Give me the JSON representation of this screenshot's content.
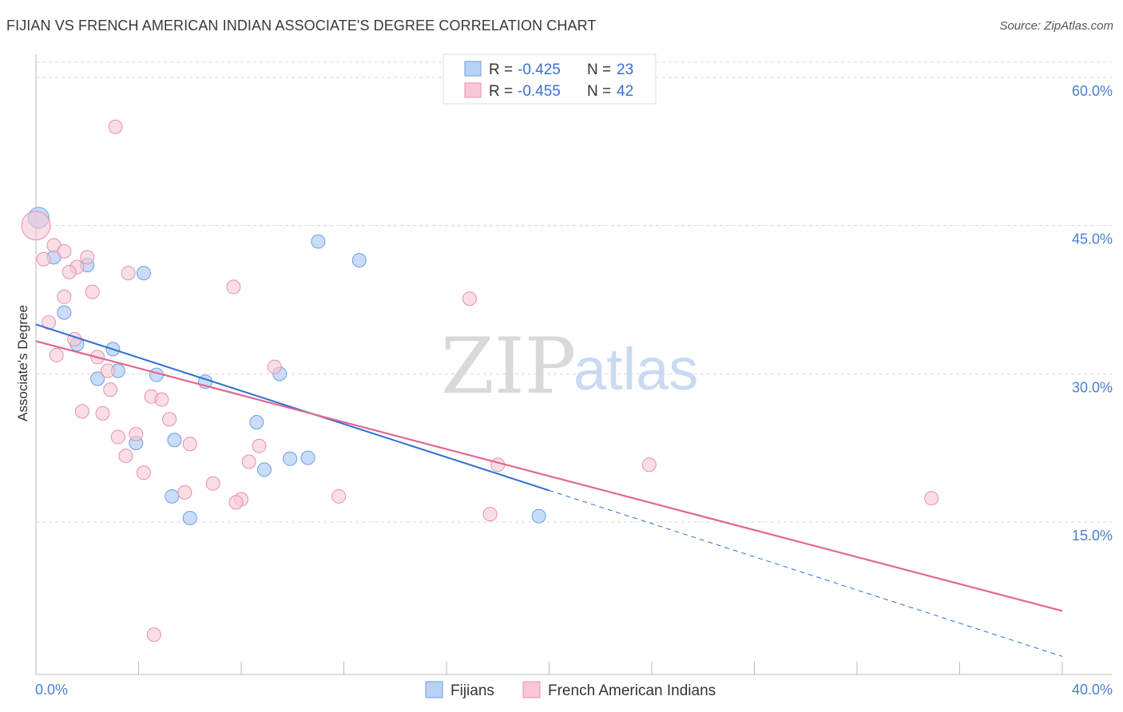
{
  "title": "FIJIAN VS FRENCH AMERICAN INDIAN ASSOCIATE'S DEGREE CORRELATION CHART",
  "source": "Source: ZipAtlas.com",
  "watermark": {
    "zip": "ZIP",
    "atlas": "atlas"
  },
  "legend_top": [
    {
      "r_label": "R = ",
      "r_value": "-0.425",
      "n_label": "N = ",
      "n_value": "23"
    },
    {
      "r_label": "R = ",
      "r_value": "-0.455",
      "n_label": "N = ",
      "n_value": "42"
    }
  ],
  "colors": {
    "fijian_fill": "#b8d2f5",
    "fijian_stroke": "#6f9de0",
    "fijian_line": "#2f6fd1",
    "french_fill": "#f7c8d6",
    "french_stroke": "#e88fab",
    "french_line": "#e2678f",
    "grid": "#d8d8d8",
    "axis": "#bbbbbb"
  },
  "chart_data": {
    "type": "scatter",
    "title": "FIJIAN VS FRENCH AMERICAN INDIAN ASSOCIATE'S DEGREE CORRELATION CHART",
    "xlabel": "",
    "ylabel": "Associate's Degree",
    "xlim": [
      0,
      40
    ],
    "ylim": [
      0,
      60
    ],
    "x_tick_labels": [
      "0.0%",
      "40.0%"
    ],
    "y_ticks": [
      15,
      30,
      45,
      60
    ],
    "y_tick_labels": [
      "15.0%",
      "30.0%",
      "45.0%",
      "60.0%"
    ],
    "grid": true,
    "legend_position": "top-center",
    "series": [
      {
        "name": "Fijians",
        "r": -0.425,
        "n": 23,
        "points": [
          [
            0.1,
            45.8
          ],
          [
            0.7,
            41.8
          ],
          [
            2.0,
            41.0
          ],
          [
            4.2,
            40.2
          ],
          [
            1.1,
            36.2
          ],
          [
            1.6,
            33.0
          ],
          [
            3.0,
            32.5
          ],
          [
            2.4,
            29.5
          ],
          [
            3.2,
            30.3
          ],
          [
            4.7,
            29.9
          ],
          [
            6.6,
            29.2
          ],
          [
            9.5,
            30.0
          ],
          [
            8.6,
            25.1
          ],
          [
            5.4,
            23.3
          ],
          [
            3.9,
            23.0
          ],
          [
            9.9,
            21.4
          ],
          [
            10.6,
            21.5
          ],
          [
            8.9,
            20.3
          ],
          [
            5.3,
            17.6
          ],
          [
            6.0,
            15.4
          ],
          [
            11.0,
            43.4
          ],
          [
            12.6,
            41.5
          ],
          [
            19.6,
            15.6
          ]
        ],
        "trend": {
          "x0": 0,
          "y0": 35.0,
          "x1": 20.0,
          "y1": 18.2,
          "dashed_to_x": 40,
          "dashed_to_y": 1.4
        }
      },
      {
        "name": "French American Indians",
        "r": -0.455,
        "n": 42,
        "points": [
          [
            0.0,
            45.0
          ],
          [
            0.3,
            41.6
          ],
          [
            0.7,
            43.0
          ],
          [
            1.1,
            42.4
          ],
          [
            2.0,
            41.8
          ],
          [
            1.6,
            40.8
          ],
          [
            1.3,
            40.3
          ],
          [
            3.6,
            40.2
          ],
          [
            7.7,
            38.8
          ],
          [
            2.2,
            38.3
          ],
          [
            1.1,
            37.8
          ],
          [
            16.9,
            37.6
          ],
          [
            0.5,
            35.2
          ],
          [
            1.5,
            33.5
          ],
          [
            0.8,
            31.9
          ],
          [
            2.4,
            31.7
          ],
          [
            9.3,
            30.7
          ],
          [
            2.8,
            30.3
          ],
          [
            2.9,
            28.4
          ],
          [
            4.5,
            27.7
          ],
          [
            4.9,
            27.4
          ],
          [
            1.8,
            26.2
          ],
          [
            2.6,
            26.0
          ],
          [
            5.2,
            25.4
          ],
          [
            3.9,
            23.9
          ],
          [
            3.2,
            23.6
          ],
          [
            6.0,
            22.9
          ],
          [
            8.7,
            22.7
          ],
          [
            3.5,
            21.7
          ],
          [
            8.3,
            21.1
          ],
          [
            18.0,
            20.8
          ],
          [
            23.9,
            20.8
          ],
          [
            4.2,
            20.0
          ],
          [
            6.9,
            18.9
          ],
          [
            5.8,
            18.0
          ],
          [
            11.8,
            17.6
          ],
          [
            8.0,
            17.3
          ],
          [
            7.8,
            17.0
          ],
          [
            34.9,
            17.4
          ],
          [
            17.7,
            15.8
          ],
          [
            3.1,
            55.0
          ],
          [
            4.6,
            3.6
          ]
        ],
        "trend": {
          "x0": 0,
          "y0": 33.3,
          "x1": 40,
          "y1": 6.0
        }
      }
    ]
  },
  "bottom_legend": [
    {
      "label": "Fijians"
    },
    {
      "label": "French American Indians"
    }
  ]
}
